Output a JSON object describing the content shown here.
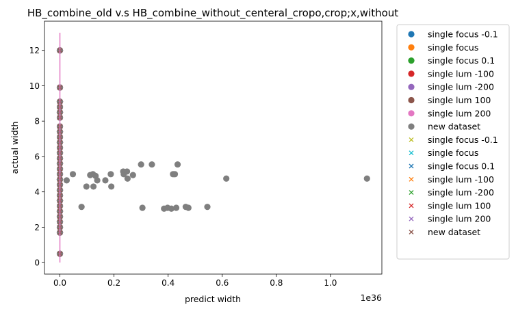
{
  "chart_data": {
    "type": "scatter",
    "title": "HB_combine_old v.s HB_combine_without_centeral_cropo,crop;x,without",
    "xlabel": "predict width",
    "ylabel": "actual width",
    "x_offset_text": "1e36",
    "xlim": [
      -0.057,
      1.19
    ],
    "ylim": [
      -0.65,
      13.65
    ],
    "x_ticks": [
      0.0,
      0.2,
      0.4,
      0.6,
      0.8,
      1.0
    ],
    "x_tick_labels": [
      "0.0",
      "0.2",
      "0.4",
      "0.6",
      "0.8",
      "1.0"
    ],
    "y_ticks": [
      0,
      2,
      4,
      6,
      8,
      10,
      12
    ],
    "y_tick_labels": [
      "0",
      "2",
      "4",
      "6",
      "8",
      "10",
      "12"
    ],
    "grid": false,
    "legend_position": "outside-right",
    "legend": [
      {
        "label": "single focus -0.1",
        "marker": "circle",
        "color": "#1f77b4"
      },
      {
        "label": "single focus",
        "marker": "circle",
        "color": "#ff7f0e"
      },
      {
        "label": "single focus 0.1",
        "marker": "circle",
        "color": "#2ca02c"
      },
      {
        "label": "single lum -100",
        "marker": "circle",
        "color": "#d62728"
      },
      {
        "label": "single lum -200",
        "marker": "circle",
        "color": "#9467bd"
      },
      {
        "label": "single lum 100",
        "marker": "circle",
        "color": "#8c564b"
      },
      {
        "label": "single lum 200",
        "marker": "circle",
        "color": "#e377c2"
      },
      {
        "label": "new dataset",
        "marker": "circle",
        "color": "#7f7f7f"
      },
      {
        "label": "single focus -0.1",
        "marker": "x",
        "color": "#bcbd22"
      },
      {
        "label": "single focus",
        "marker": "x",
        "color": "#17becf"
      },
      {
        "label": "single focus 0.1",
        "marker": "x",
        "color": "#1f77b4"
      },
      {
        "label": "single lum -100",
        "marker": "x",
        "color": "#ff7f0e"
      },
      {
        "label": "single lum -200",
        "marker": "x",
        "color": "#2ca02c"
      },
      {
        "label": "single lum 100",
        "marker": "x",
        "color": "#d62728"
      },
      {
        "label": "single lum 200",
        "marker": "x",
        "color": "#9467bd"
      },
      {
        "label": "new dataset",
        "marker": "x",
        "color": "#8c564b"
      }
    ],
    "near_zero_y_values": [
      0.5,
      1.7,
      2.0,
      2.3,
      2.6,
      2.9,
      3.2,
      3.5,
      3.8,
      4.1,
      4.4,
      4.7,
      5.0,
      5.3,
      5.6,
      5.9,
      6.2,
      6.5,
      6.8,
      7.1,
      7.4,
      7.7,
      8.2,
      8.5,
      8.8,
      9.1,
      9.9,
      12.0
    ],
    "vertical_line": {
      "x": 0.0,
      "y0": 0.0,
      "y1": 13.0,
      "color": "#e377c2"
    },
    "series_new_dataset_spread": {
      "color": "#7f7f7f",
      "points": [
        {
          "x": 0.025,
          "y": 4.65
        },
        {
          "x": 0.048,
          "y": 5.0
        },
        {
          "x": 0.08,
          "y": 3.15
        },
        {
          "x": 0.098,
          "y": 4.3
        },
        {
          "x": 0.112,
          "y": 4.95
        },
        {
          "x": 0.122,
          "y": 5.0
        },
        {
          "x": 0.124,
          "y": 4.3
        },
        {
          "x": 0.132,
          "y": 4.9
        },
        {
          "x": 0.138,
          "y": 4.65
        },
        {
          "x": 0.168,
          "y": 4.65
        },
        {
          "x": 0.188,
          "y": 5.0
        },
        {
          "x": 0.19,
          "y": 4.3
        },
        {
          "x": 0.234,
          "y": 5.15
        },
        {
          "x": 0.236,
          "y": 5.0
        },
        {
          "x": 0.248,
          "y": 5.15
        },
        {
          "x": 0.25,
          "y": 4.75
        },
        {
          "x": 0.27,
          "y": 4.95
        },
        {
          "x": 0.3,
          "y": 5.55
        },
        {
          "x": 0.305,
          "y": 3.1
        },
        {
          "x": 0.34,
          "y": 5.55
        },
        {
          "x": 0.385,
          "y": 3.05
        },
        {
          "x": 0.398,
          "y": 3.1
        },
        {
          "x": 0.412,
          "y": 3.05
        },
        {
          "x": 0.418,
          "y": 5.0
        },
        {
          "x": 0.425,
          "y": 5.0
        },
        {
          "x": 0.43,
          "y": 3.1
        },
        {
          "x": 0.435,
          "y": 5.55
        },
        {
          "x": 0.465,
          "y": 3.15
        },
        {
          "x": 0.475,
          "y": 3.1
        },
        {
          "x": 0.545,
          "y": 3.15
        },
        {
          "x": 0.615,
          "y": 4.75
        },
        {
          "x": 1.135,
          "y": 4.75
        }
      ]
    }
  }
}
